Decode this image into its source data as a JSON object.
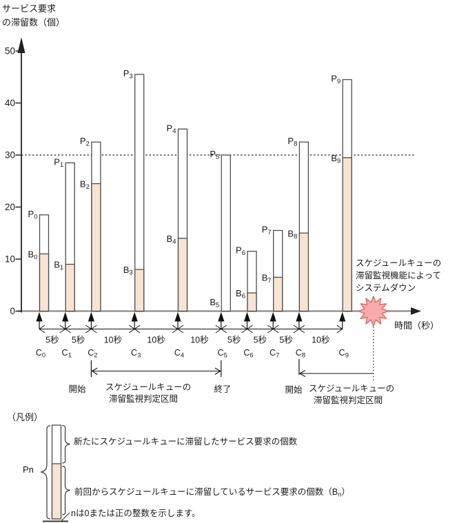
{
  "title": {
    "line1": "サービス要求",
    "line2": "の滞留数（個）"
  },
  "axes": {
    "x_label": "時間（秒）",
    "y_ticks": [
      0,
      10,
      20,
      30,
      40,
      50
    ],
    "threshold_value": 30
  },
  "chart_data": {
    "type": "bar",
    "stacked": true,
    "title": "サービス要求の滞留数（個）",
    "ylabel": "サービス要求の滞留数（個）",
    "xlabel": "時間（秒）",
    "ylim": [
      0,
      52
    ],
    "yticks": [
      0,
      10,
      20,
      30,
      40,
      50
    ],
    "threshold": 30,
    "grid": false,
    "checkpoints": [
      {
        "c": "C",
        "sub": "0",
        "P": 18.5,
        "B": 11
      },
      {
        "c": "C",
        "sub": "1",
        "P": 28.5,
        "B": 9
      },
      {
        "c": "C",
        "sub": "2",
        "P": 32.5,
        "B": 24.5
      },
      {
        "c": "C",
        "sub": "3",
        "P": 45.5,
        "B": 8
      },
      {
        "c": "C",
        "sub": "4",
        "P": 35,
        "B": 14
      },
      {
        "c": "C",
        "sub": "5",
        "P": 30,
        "B": 0
      },
      {
        "c": "C",
        "sub": "6",
        "P": 11.5,
        "B": 3.5
      },
      {
        "c": "C",
        "sub": "7",
        "P": 15.5,
        "B": 6.5
      },
      {
        "c": "C",
        "sub": "8",
        "P": 32.5,
        "B": 15
      },
      {
        "c": "C",
        "sub": "9",
        "P": 44.5,
        "B": 29.5
      }
    ],
    "series_labels": {
      "new_prefix": "P",
      "carry_prefix": "B"
    },
    "intervals": [
      "5秒",
      "5秒",
      "10秒",
      "10秒",
      "10秒",
      "5秒",
      "5秒",
      "5秒",
      "10秒"
    ],
    "monitoring_intervals": [
      {
        "from_index": 2,
        "to_index": 5
      },
      {
        "from_index": 8,
        "to_index": "crash"
      }
    ]
  },
  "annotations": {
    "interval1": {
      "start": "開始",
      "end": "終了",
      "line1": "スケジュールキューの",
      "line2": "滞留監視判定区間"
    },
    "interval2": {
      "start": "開始",
      "line1": "スケジュールキューの",
      "line2": "滞留監視判定区間"
    },
    "crash": {
      "line1": "スケジュールキューの",
      "line2": "滞留監視機能によって",
      "line3": "システムダウン"
    }
  },
  "legend": {
    "title": "（凡例）",
    "pn": "Pn",
    "new_text": "新たにスケジュールキューに滞留したサービス要求の個数",
    "prev_prefix": "前回からスケジュールキューに滞留しているサービス要求の個数（B",
    "prev_sub": "n",
    "prev_suffix": "）",
    "note": "nは0または正の整数を示します。"
  },
  "colors": {
    "bar_fill": "#f6e5d2",
    "bar_stroke": "#4d4d4d",
    "axis_gray": "#8a8a8a",
    "line_dark": "#222222",
    "burst_fill": "#f7abab",
    "burst_stroke": "#e06c6c",
    "text": "#1a1a1a"
  }
}
